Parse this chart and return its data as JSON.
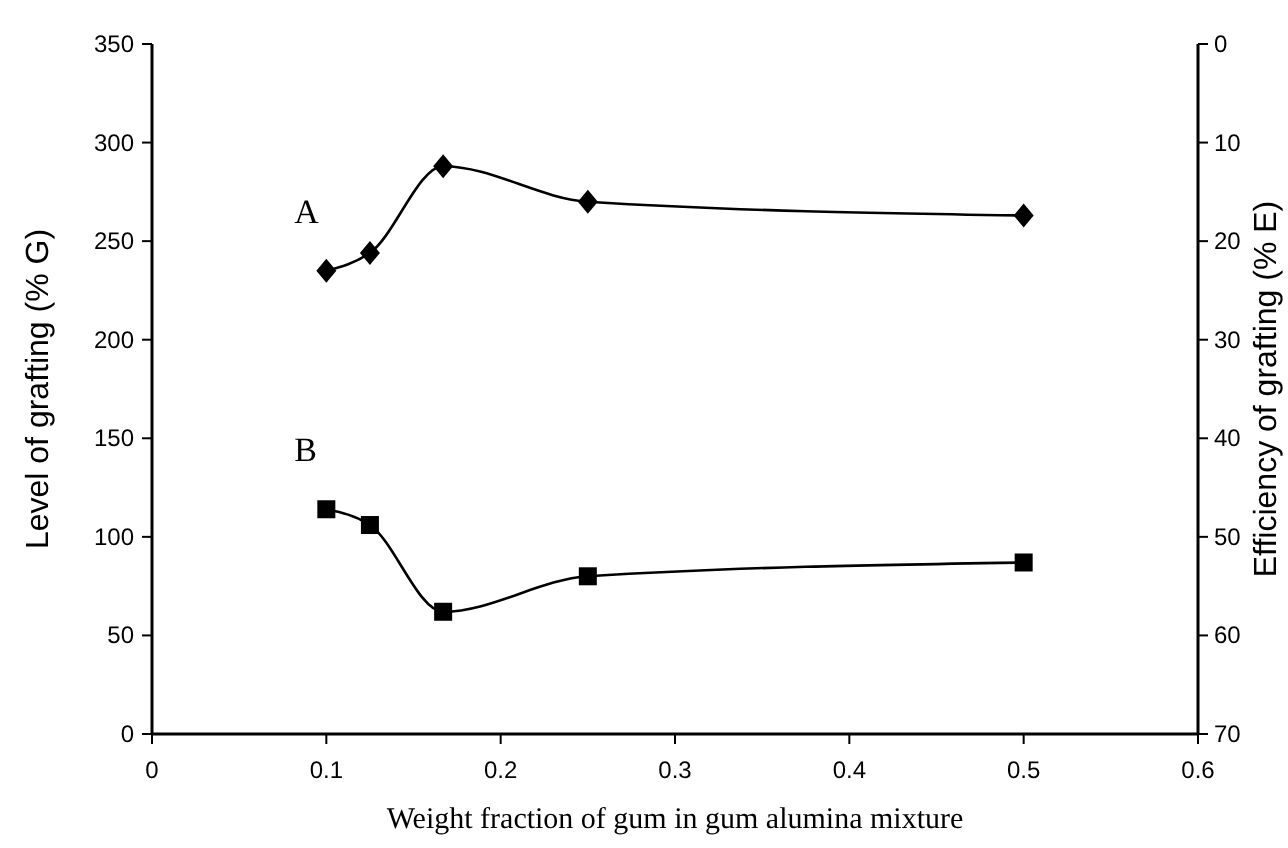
{
  "chart_data": {
    "type": "line",
    "xlabel": "Weight fraction of gum in gum alumina  mixture",
    "ylabel": "Level of grafting (% G)",
    "y2label": "Efficiency  of grafting (% E)",
    "xlim": [
      0,
      0.6
    ],
    "xticks": [
      0,
      0.1,
      0.2,
      0.3,
      0.4,
      0.5,
      0.6
    ],
    "ylim": [
      0,
      350
    ],
    "yticks": [
      0,
      50,
      100,
      150,
      200,
      250,
      300,
      350
    ],
    "y2lim": [
      70,
      0
    ],
    "y2ticks": [
      0,
      10,
      20,
      30,
      40,
      50,
      60,
      70
    ],
    "series": [
      {
        "name": "A",
        "color": "#000000",
        "marker": "diamond",
        "x": [
          0.1,
          0.125,
          0.167,
          0.25,
          0.5
        ],
        "values": [
          235,
          244,
          288,
          270,
          263
        ]
      },
      {
        "name": "B",
        "color": "#000000",
        "marker": "square",
        "axis": "y2",
        "x": [
          0.1,
          0.125,
          0.167,
          0.25,
          0.5
        ],
        "values": [
          47.2,
          48.8,
          57.6,
          54,
          52.6
        ]
      }
    ],
    "grid": false,
    "line_style": "solid"
  }
}
